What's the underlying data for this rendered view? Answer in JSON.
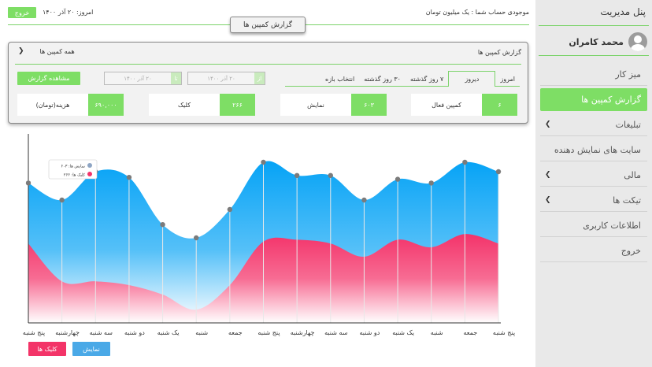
{
  "sidebar": {
    "title": "پنل مدیریت",
    "username": "محمد کامران",
    "items": [
      {
        "label": "میز کار",
        "chevron": false,
        "active": false
      },
      {
        "label": "گزارش کمپین ها",
        "chevron": false,
        "active": true
      },
      {
        "label": "تبلیغات",
        "chevron": true,
        "active": false
      },
      {
        "label": "سایت های نمایش دهنده",
        "chevron": false,
        "active": false
      },
      {
        "label": "مالی",
        "chevron": true,
        "active": false
      },
      {
        "label": "تیکت ها",
        "chevron": true,
        "active": false
      },
      {
        "label": "اطلاعات کاربری",
        "chevron": false,
        "active": false
      },
      {
        "label": "خروج",
        "chevron": false,
        "active": false
      }
    ]
  },
  "topbar": {
    "exit_label": "خروج",
    "today": "امروز: ۲۰ آذر ۱۴۰۰",
    "balance": "موجودی حساب شما : یک میلیون تومان",
    "report_tab": "گزارش کمپین ها"
  },
  "panel": {
    "title": "گزارش کمپین ها",
    "all_campaigns": "همه کمپین ها",
    "view_report": "مشاهده گزارش",
    "date_from": "۲۰ آذر ۱۴۰۰",
    "date_from_cap": "از",
    "date_to": "۲۰ آذر ۱۴۰۰",
    "date_to_cap": "تا",
    "ranges": [
      "امروز",
      "دیروز",
      "۷ روز گذشته",
      "۳۰ روز گذشته",
      "انتخاب بازه"
    ],
    "active_range": 1,
    "stats": [
      {
        "label": "کمپین فعال",
        "value": "۶"
      },
      {
        "label": "نمایش",
        "value": "۶۰۳"
      },
      {
        "label": "کلیک",
        "value": "۲۶۶"
      },
      {
        "label": "هزینه(تومان)",
        "value": "۶۹۰,۰۰۰"
      }
    ]
  },
  "legend": {
    "clicks": "کلیک ها",
    "views": "نمایش"
  },
  "tooltip": {
    "views": "نمایش ها: ۶۰۳",
    "clicks": "کلیک ها: ۲۶۶"
  },
  "colors": {
    "accent": "#7ede65",
    "views": "#1aa6f5",
    "clicks": "#f3336a"
  },
  "chart_data": {
    "type": "area",
    "categories": [
      "پنج شنبه",
      "چهارشنبه",
      "سه شنبه",
      "دو شنبه",
      "یک شنبه",
      "شنبه",
      "جمعه",
      "پنج شنبه",
      "چهارشنبه",
      "سه شنبه",
      "دو شنبه",
      "یک شنبه",
      "شنبه",
      "جمعه",
      "پنج شنبه"
    ],
    "series": [
      {
        "name": "نمایش",
        "values": [
          0.74,
          0.65,
          0.8,
          0.77,
          0.52,
          0.45,
          0.6,
          0.85,
          0.78,
          0.78,
          0.65,
          0.76,
          0.74,
          0.85,
          0.8
        ]
      },
      {
        "name": "کلیک ها",
        "values": [
          0.42,
          0.22,
          0.22,
          0.2,
          0.15,
          0.07,
          0.2,
          0.43,
          0.44,
          0.42,
          0.35,
          0.44,
          0.4,
          0.47,
          0.42
        ]
      }
    ],
    "ylim": [
      0,
      1
    ],
    "grid": false
  }
}
